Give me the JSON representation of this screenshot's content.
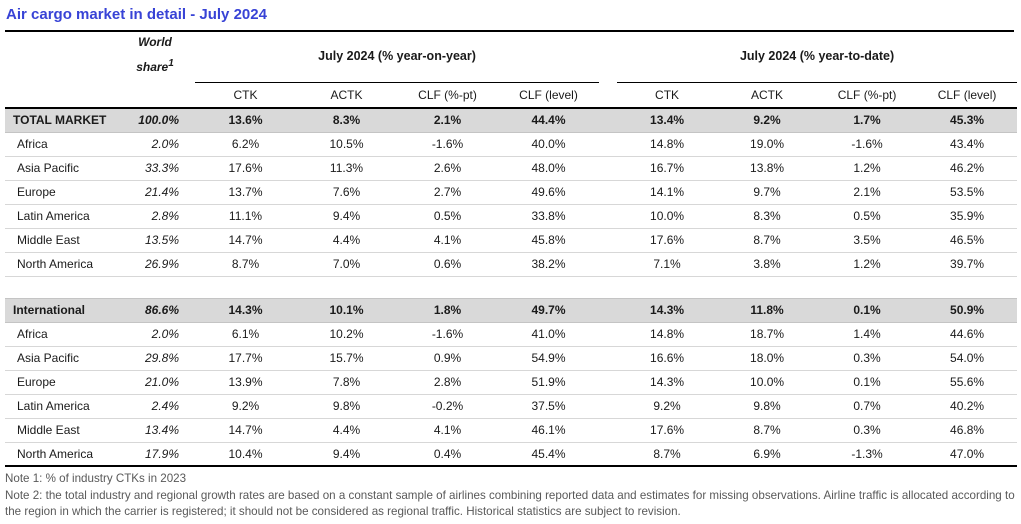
{
  "title": "Air cargo market in detail - July 2024",
  "colors": {
    "title_blue": "#3843D6",
    "total_row_bg": "#d9d9d9",
    "note_gray": "#595959",
    "rule_black": "#000000"
  },
  "header": {
    "world_share_line1": "World",
    "world_share_line2": "share",
    "world_share_sup": "1",
    "group_yoy": "July 2024 (% year-on-year)",
    "group_ytd": "July 2024 (% year-to-date)",
    "columns": [
      "CTK",
      "ACTK",
      "CLF (%-pt)",
      "CLF (level)"
    ]
  },
  "table": {
    "sections": [
      {
        "rows": [
          {
            "region": "TOTAL MARKET",
            "bold": true,
            "world_share": "100.0%",
            "yoy": [
              "13.6%",
              "8.3%",
              "2.1%",
              "44.4%"
            ],
            "ytd": [
              "13.4%",
              "9.2%",
              "1.7%",
              "45.3%"
            ]
          },
          {
            "region": "Africa",
            "bold": false,
            "world_share": "2.0%",
            "yoy": [
              "6.2%",
              "10.5%",
              "-1.6%",
              "40.0%"
            ],
            "ytd": [
              "14.8%",
              "19.0%",
              "-1.6%",
              "43.4%"
            ]
          },
          {
            "region": "Asia Pacific",
            "bold": false,
            "world_share": "33.3%",
            "yoy": [
              "17.6%",
              "11.3%",
              "2.6%",
              "48.0%"
            ],
            "ytd": [
              "16.7%",
              "13.8%",
              "1.2%",
              "46.2%"
            ]
          },
          {
            "region": "Europe",
            "bold": false,
            "world_share": "21.4%",
            "yoy": [
              "13.7%",
              "7.6%",
              "2.7%",
              "49.6%"
            ],
            "ytd": [
              "14.1%",
              "9.7%",
              "2.1%",
              "53.5%"
            ]
          },
          {
            "region": "Latin America",
            "bold": false,
            "world_share": "2.8%",
            "yoy": [
              "11.1%",
              "9.4%",
              "0.5%",
              "33.8%"
            ],
            "ytd": [
              "10.0%",
              "8.3%",
              "0.5%",
              "35.9%"
            ]
          },
          {
            "region": "Middle East",
            "bold": false,
            "world_share": "13.5%",
            "yoy": [
              "14.7%",
              "4.4%",
              "4.1%",
              "45.8%"
            ],
            "ytd": [
              "17.6%",
              "8.7%",
              "3.5%",
              "46.5%"
            ]
          },
          {
            "region": "North America",
            "bold": false,
            "world_share": "26.9%",
            "yoy": [
              "8.7%",
              "7.0%",
              "0.6%",
              "38.2%"
            ],
            "ytd": [
              "7.1%",
              "3.8%",
              "1.2%",
              "39.7%"
            ]
          }
        ]
      },
      {
        "rows": [
          {
            "region": "International",
            "bold": true,
            "world_share": "86.6%",
            "yoy": [
              "14.3%",
              "10.1%",
              "1.8%",
              "49.7%"
            ],
            "ytd": [
              "14.3%",
              "11.8%",
              "0.1%",
              "50.9%"
            ]
          },
          {
            "region": "Africa",
            "bold": false,
            "world_share": "2.0%",
            "yoy": [
              "6.1%",
              "10.2%",
              "-1.6%",
              "41.0%"
            ],
            "ytd": [
              "14.8%",
              "18.7%",
              "1.4%",
              "44.6%"
            ]
          },
          {
            "region": "Asia Pacific",
            "bold": false,
            "world_share": "29.8%",
            "yoy": [
              "17.7%",
              "15.7%",
              "0.9%",
              "54.9%"
            ],
            "ytd": [
              "16.6%",
              "18.0%",
              "0.3%",
              "54.0%"
            ]
          },
          {
            "region": "Europe",
            "bold": false,
            "world_share": "21.0%",
            "yoy": [
              "13.9%",
              "7.8%",
              "2.8%",
              "51.9%"
            ],
            "ytd": [
              "14.3%",
              "10.0%",
              "0.1%",
              "55.6%"
            ]
          },
          {
            "region": "Latin America",
            "bold": false,
            "world_share": "2.4%",
            "yoy": [
              "9.2%",
              "9.8%",
              "-0.2%",
              "37.5%"
            ],
            "ytd": [
              "9.2%",
              "9.8%",
              "0.7%",
              "40.2%"
            ]
          },
          {
            "region": "Middle East",
            "bold": false,
            "world_share": "13.4%",
            "yoy": [
              "14.7%",
              "4.4%",
              "4.1%",
              "46.1%"
            ],
            "ytd": [
              "17.6%",
              "8.7%",
              "0.3%",
              "46.8%"
            ]
          },
          {
            "region": "North America",
            "bold": false,
            "world_share": "17.9%",
            "yoy": [
              "10.4%",
              "9.4%",
              "0.4%",
              "45.4%"
            ],
            "ytd": [
              "8.7%",
              "6.9%",
              "-1.3%",
              "47.0%"
            ]
          }
        ]
      }
    ]
  },
  "notes": [
    "Note 1: % of industry CTKs in 2023",
    "Note 2: the total industry and regional growth rates are based on a constant sample of airlines combining reported data and estimates for missing observations. Airline traffic is allocated according to the region in which the carrier is registered; it should not be considered as regional traffic. Historical statistics are subject to revision."
  ]
}
